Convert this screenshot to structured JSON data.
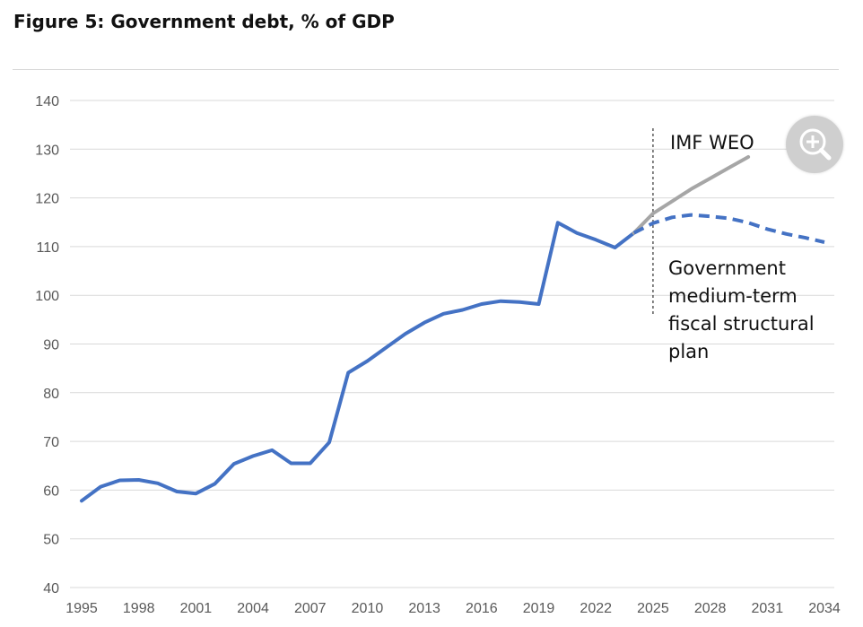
{
  "figure_title": "Figure 5: Government debt, % of GDP",
  "chart_data": {
    "type": "line",
    "title": "Figure 5: Government debt, % of GDP",
    "xlabel": "",
    "ylabel": "",
    "ylim": [
      40,
      140
    ],
    "yticks": [
      40,
      50,
      60,
      70,
      80,
      90,
      100,
      110,
      120,
      130,
      140
    ],
    "xlim": [
      1995,
      2034
    ],
    "xticks": [
      1995,
      1998,
      2001,
      2004,
      2007,
      2010,
      2013,
      2016,
      2019,
      2022,
      2025,
      2028,
      2031,
      2034
    ],
    "grid": "horizontal",
    "colors": {
      "historical": "#4472c4",
      "imf": "#a6a6a6",
      "plan": "#4472c4",
      "marker": "#333333"
    },
    "series": [
      {
        "key": "historical",
        "style": "solid",
        "x": [
          1995,
          1996,
          1997,
          1998,
          1999,
          2000,
          2001,
          2002,
          2003,
          2004,
          2005,
          2006,
          2007,
          2008,
          2009,
          2010,
          2011,
          2012,
          2013,
          2014,
          2015,
          2016,
          2017,
          2018,
          2019,
          2020,
          2021,
          2022,
          2023,
          2024
        ],
        "values": [
          57.8,
          60.7,
          62.0,
          62.1,
          61.4,
          59.7,
          59.3,
          61.3,
          65.4,
          67.0,
          68.2,
          65.5,
          65.5,
          69.8,
          84.1,
          86.5,
          89.3,
          92.1,
          94.4,
          96.2,
          97.0,
          98.2,
          98.8,
          98.6,
          98.2,
          114.9,
          112.8,
          111.4,
          109.8,
          112.8
        ]
      },
      {
        "key": "imf",
        "name": "IMF WEO",
        "style": "solid",
        "x": [
          2024,
          2025,
          2026,
          2027,
          2028,
          2029,
          2030
        ],
        "values": [
          112.8,
          116.8,
          119.3,
          121.8,
          124.0,
          126.2,
          128.4
        ]
      },
      {
        "key": "plan",
        "name": "Government medium-term fiscal structural plan",
        "style": "dashed",
        "x": [
          2024,
          2025,
          2026,
          2027,
          2028,
          2029,
          2030,
          2031,
          2032,
          2033,
          2034
        ],
        "values": [
          112.8,
          114.8,
          116.0,
          116.5,
          116.2,
          115.8,
          114.9,
          113.6,
          112.6,
          111.8,
          110.9
        ]
      }
    ],
    "vline_x": 2025,
    "annotations": [
      {
        "key": "imf",
        "lines": [
          "IMF WEO"
        ]
      },
      {
        "key": "plan",
        "lines": [
          "Government",
          "medium-term",
          "fiscal structural",
          "plan"
        ]
      }
    ]
  },
  "zoom_button": {
    "icon": "zoom-in-icon"
  }
}
